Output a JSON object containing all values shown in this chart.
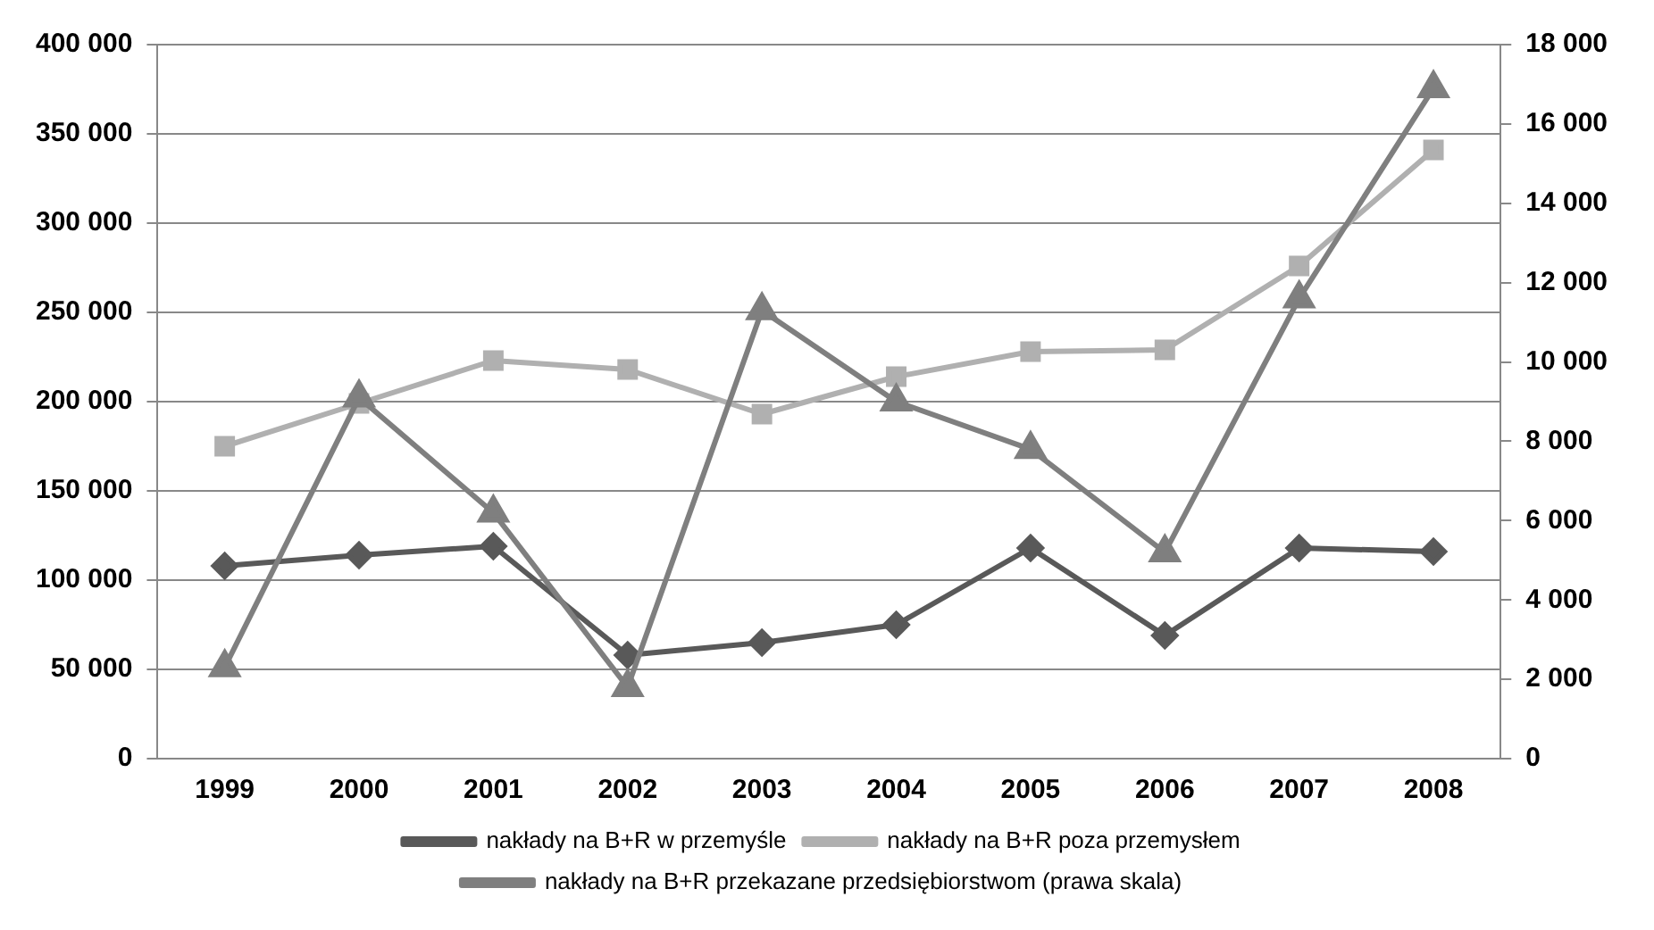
{
  "chart_data": {
    "type": "line",
    "categories": [
      "1999",
      "2000",
      "2001",
      "2002",
      "2003",
      "2004",
      "2005",
      "2006",
      "2007",
      "2008"
    ],
    "series": [
      {
        "name": "nakłady na B+R w przemyśle",
        "color": "#595959",
        "marker": "diamond",
        "values": [
          108000,
          114000,
          119000,
          58000,
          65000,
          75000,
          118000,
          69000,
          118000,
          116000
        ]
      },
      {
        "name": "nakłady na B+R poza przemysłem",
        "color": "#b0b0b0",
        "marker": "square",
        "values": [
          175000,
          199000,
          223000,
          218000,
          193000,
          214000,
          228000,
          229000,
          276000,
          341000
        ]
      },
      {
        "name": "nakłady na B+R przekazane przedsiębiorstwom (prawa skala)",
        "color": "#7f7f7f",
        "marker": "triangle",
        "axis": "y2",
        "values": [
          2300,
          9100,
          6200,
          1800,
          11300,
          9000,
          7800,
          5200,
          11600,
          16900
        ]
      }
    ],
    "ylim": [
      0,
      400000
    ],
    "yticks": [
      0,
      {
        "value": 50000,
        "label": "50 000"
      },
      {
        "value": 100000,
        "label": "100 000"
      },
      {
        "value": 150000,
        "label": "150 000"
      },
      {
        "value": 200000,
        "label": "200 000"
      },
      {
        "value": 250000,
        "label": "250 000"
      },
      {
        "value": 300000,
        "label": "300 000"
      },
      {
        "value": 350000,
        "label": "350 000"
      },
      {
        "value": 400000,
        "label": "400 000"
      }
    ],
    "y2lim": [
      0,
      18000
    ],
    "y2ticks": [
      0,
      {
        "value": 2000,
        "label": "2 000"
      },
      {
        "value": 4000,
        "label": "4 000"
      },
      {
        "value": 6000,
        "label": "6 000"
      },
      {
        "value": 8000,
        "label": "8 000"
      },
      {
        "value": 10000,
        "label": "10 000"
      },
      {
        "value": 12000,
        "label": "12 000"
      },
      {
        "value": 14000,
        "label": "14 000"
      },
      {
        "value": 16000,
        "label": "16 000"
      },
      {
        "value": 18000,
        "label": "18 000"
      }
    ],
    "grid": "y",
    "legend": "bottom",
    "line_style": "solid"
  }
}
